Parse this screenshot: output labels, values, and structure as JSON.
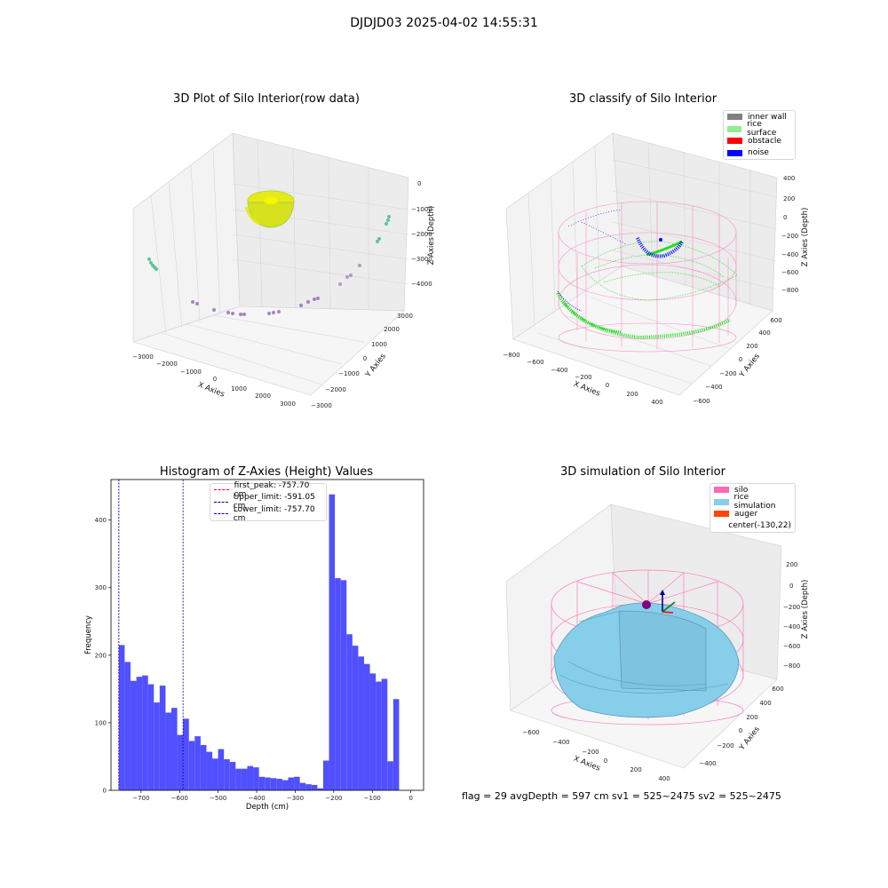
{
  "figure": {
    "suptitle": "DJDJD03 2025-04-02 14:55:31",
    "footer": "flag = 29  avgDepth = 597 cm  sv1 = 525~2475  sv2 = 525~2475"
  },
  "panels": {
    "raw": {
      "title": "3D Plot of Silo Interior(row data)",
      "xlabel": "X Axies",
      "ylabel": "Y Axies",
      "zlabel": "Z Axies (Depth)",
      "xticks": [
        "−3000",
        "−2000",
        "−1000",
        "0",
        "1000",
        "2000",
        "3000"
      ],
      "yticks": [
        "−3000",
        "−2000",
        "−1000",
        "0",
        "1000",
        "2000",
        "3000"
      ],
      "zticks": [
        "0",
        "−1000",
        "−2000",
        "−3000",
        "−4000"
      ]
    },
    "classify": {
      "title": "3D classify of Silo Interior",
      "xlabel": "X Axies",
      "ylabel": "Y Axies",
      "zlabel": "Z Axies (Depth)",
      "xticks": [
        "−800",
        "−600",
        "−400",
        "−200",
        "0",
        "200",
        "400"
      ],
      "yticks": [
        "−600",
        "−400",
        "−200",
        "0",
        "200",
        "400",
        "600"
      ],
      "zticks": [
        "400",
        "200",
        "0",
        "−200",
        "−400",
        "−600",
        "−800"
      ],
      "legend": [
        {
          "label": "inner wall",
          "color": "#808080"
        },
        {
          "label": "rice surface",
          "color": "#90ee90"
        },
        {
          "label": "obstacle",
          "color": "#ff0000"
        },
        {
          "label": "noise",
          "color": "#0000ff"
        }
      ]
    },
    "simulation": {
      "title": "3D simulation of Silo Interior",
      "xlabel": "X Axies",
      "ylabel": "Y Axies",
      "zlabel": "Z Axies (Depth)",
      "xticks": [
        "−600",
        "−400",
        "−200",
        "0",
        "200",
        "400"
      ],
      "yticks": [
        "−400",
        "−200",
        "0",
        "200",
        "400",
        "600"
      ],
      "zticks": [
        "200",
        "0",
        "−200",
        "−400",
        "−600",
        "−800"
      ],
      "legend": [
        {
          "label": "silo",
          "color": "#ff69b4"
        },
        {
          "label": "rice simulation",
          "color": "#87ceeb"
        },
        {
          "label": "auger",
          "color": "#ff4500"
        },
        {
          "label": "center(-130,22)",
          "color": ""
        }
      ]
    }
  },
  "chart_data": [
    {
      "type": "bar",
      "title": "Histogram of Z-Axies (Height) Values",
      "xlabel": "Depth (cm)",
      "ylabel": "Frequency",
      "xlim": [
        -778,
        33
      ],
      "ylim": [
        0,
        460
      ],
      "xticks": [
        -700,
        -600,
        -500,
        -400,
        -300,
        -200,
        -100,
        0
      ],
      "xtick_labels": [
        "−700",
        "−600",
        "−500",
        "−400",
        "−300",
        "−200",
        "−100",
        "0"
      ],
      "yticks": [
        0,
        100,
        200,
        300,
        400
      ],
      "bar_color": "#5050ff",
      "bin_start": -757.7,
      "bin_width": 15.15,
      "values": [
        215,
        190,
        162,
        168,
        170,
        157,
        130,
        155,
        115,
        122,
        82,
        106,
        73,
        80,
        67,
        57,
        47,
        61,
        46,
        42,
        32,
        32,
        36,
        34,
        20,
        19,
        18,
        17,
        15,
        19,
        20,
        11,
        9,
        8,
        3,
        44,
        438,
        314,
        311,
        231,
        214,
        198,
        187,
        173,
        161,
        165,
        43,
        135
      ],
      "vlines": [
        {
          "label": "first_peak: -757.70 cm",
          "x": -757.7,
          "color": "#ff0000"
        },
        {
          "label": "Upper_limit: -591.05 cm",
          "x": -591.05,
          "color": "#00008b"
        },
        {
          "label": "Lower_limit: -757.70 cm",
          "x": -757.7,
          "color": "#0000ff"
        }
      ]
    }
  ]
}
